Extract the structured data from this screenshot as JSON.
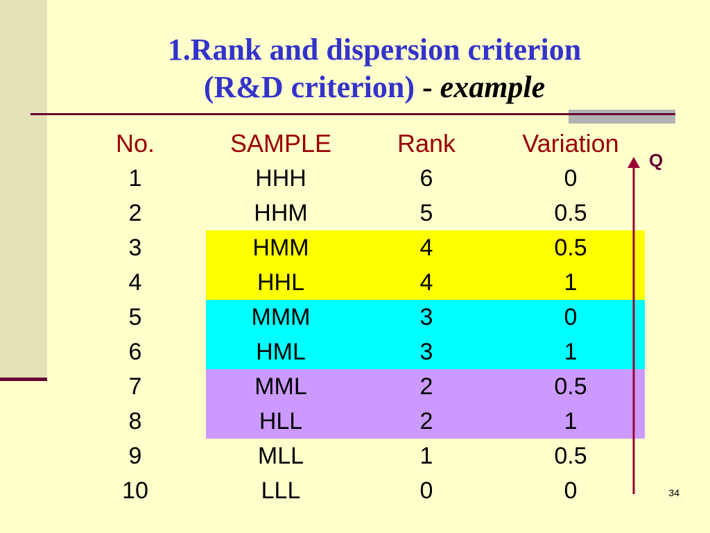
{
  "title": {
    "line1": "1.Rank and dispersion criterion",
    "line2": "(R&D criterion)",
    "dash": " - ",
    "emphasis": "example"
  },
  "table": {
    "headers": [
      "No.",
      "SAMPLE",
      "Rank",
      "Variation"
    ],
    "rows": [
      [
        "1",
        "HHH",
        "6",
        "0"
      ],
      [
        "2",
        "HHM",
        "5",
        "0.5"
      ],
      [
        "3",
        "HMM",
        "4",
        "0.5"
      ],
      [
        "4",
        "HHL",
        "4",
        "1"
      ],
      [
        "5",
        "MMM",
        "3",
        "0"
      ],
      [
        "6",
        "HML",
        "3",
        "1"
      ],
      [
        "7",
        "MML",
        "2",
        "0.5"
      ],
      [
        "8",
        "HLL",
        "2",
        "1"
      ],
      [
        "9",
        "MLL",
        "1",
        "0.5"
      ],
      [
        "10",
        "LLL",
        "0",
        "0"
      ]
    ]
  },
  "highlights": [
    {
      "rows": [
        3,
        4
      ],
      "color": "#FFFF00"
    },
    {
      "rows": [
        5,
        6
      ],
      "color": "#00FFFF"
    },
    {
      "rows": [
        7,
        8
      ],
      "color": "#CC99FF"
    }
  ],
  "axis_label": "Q",
  "slide_number": "34",
  "colors": {
    "background": "#FFFFCC",
    "title": "#3333CC",
    "header": "#990000",
    "accent": "#660033"
  }
}
